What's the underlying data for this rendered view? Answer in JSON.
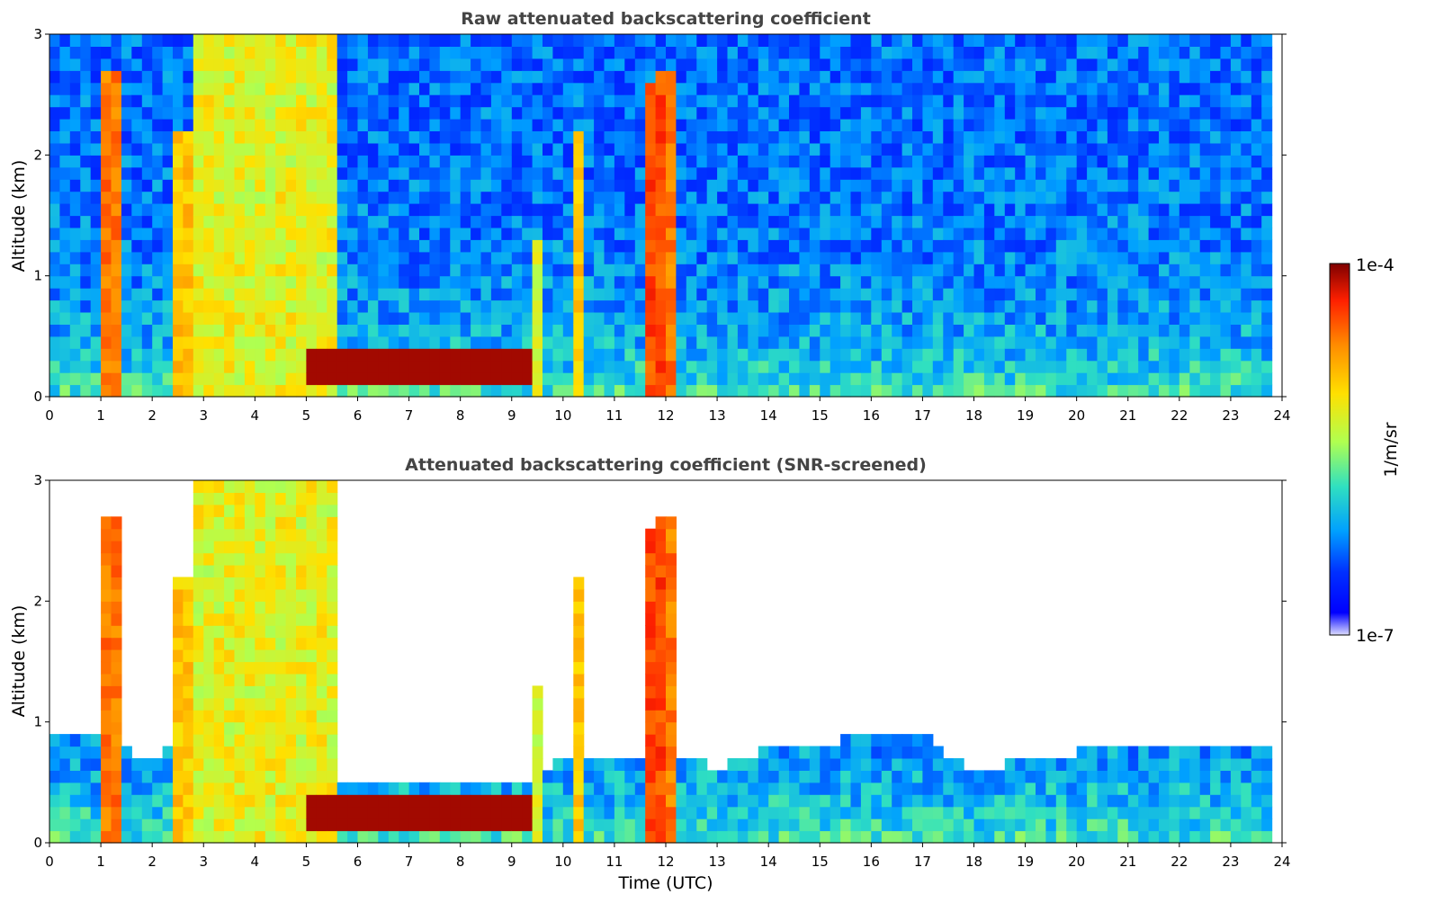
{
  "chart_data": [
    {
      "type": "heatmap",
      "title": "Raw attenuated backscattering coefficient",
      "xlabel": "",
      "ylabel": "Altitude (km)",
      "xlim": [
        0,
        24
      ],
      "ylim": [
        0,
        3
      ],
      "xticks": [
        "0",
        "1",
        "2",
        "3",
        "4",
        "5",
        "6",
        "7",
        "8",
        "9",
        "10",
        "11",
        "12",
        "13",
        "14",
        "15",
        "16",
        "17",
        "18",
        "19",
        "20",
        "21",
        "22",
        "23",
        "24"
      ],
      "yticks": [
        "0",
        "1",
        "2",
        "3"
      ],
      "data_end_hour": 23.8,
      "features": [
        {
          "kind": "aerosol_layer",
          "t0": 0,
          "t1": 23.8,
          "top_km": 0.45,
          "level": 0.22
        },
        {
          "kind": "noise_background",
          "t0": 0,
          "t1": 23.8,
          "level": 0.35
        },
        {
          "kind": "dense_plume",
          "t0": 2.8,
          "t1": 5.6,
          "top_km": 3.0,
          "level": 0.62
        },
        {
          "kind": "cloud_layer",
          "t0": 5.0,
          "t1": 9.3,
          "base_km": 0.12,
          "top_km": 0.35,
          "level": 0.97
        },
        {
          "kind": "column",
          "t": 1.2,
          "top_km": 2.7,
          "level": 0.8
        },
        {
          "kind": "column",
          "t": 2.6,
          "top_km": 2.2,
          "level": 0.7
        },
        {
          "kind": "column",
          "t": 9.5,
          "top_km": 1.3,
          "level": 0.6
        },
        {
          "kind": "column",
          "t": 10.3,
          "top_km": 2.2,
          "level": 0.7
        },
        {
          "kind": "column",
          "t": 11.8,
          "top_km": 2.6,
          "level": 0.85
        },
        {
          "kind": "column",
          "t": 12.0,
          "top_km": 2.7,
          "level": 0.8
        }
      ]
    },
    {
      "type": "heatmap",
      "title": "Attenuated backscattering coefficient (SNR-screened)",
      "xlabel": "Time (UTC)",
      "ylabel": "Altitude (km)",
      "xlim": [
        0,
        24
      ],
      "ylim": [
        0,
        3
      ],
      "xticks": [
        "0",
        "1",
        "2",
        "3",
        "4",
        "5",
        "6",
        "7",
        "8",
        "9",
        "10",
        "11",
        "12",
        "13",
        "14",
        "15",
        "16",
        "17",
        "18",
        "19",
        "20",
        "21",
        "22",
        "23",
        "24"
      ],
      "yticks": [
        "0",
        "1",
        "2",
        "3"
      ],
      "data_end_hour": 23.8,
      "screened_boundary_km": [
        [
          0,
          0.95
        ],
        [
          1,
          0.85
        ],
        [
          2,
          0.7
        ],
        [
          3,
          1.1
        ],
        [
          4,
          0.95
        ],
        [
          5,
          0.6
        ],
        [
          6,
          0.5
        ],
        [
          7,
          0.45
        ],
        [
          8,
          0.38
        ],
        [
          9,
          0.38
        ],
        [
          10,
          0.7
        ],
        [
          11,
          0.7
        ],
        [
          12,
          0.75
        ],
        [
          13,
          0.62
        ],
        [
          14,
          0.8
        ],
        [
          15,
          0.78
        ],
        [
          16,
          0.95
        ],
        [
          17,
          0.9
        ],
        [
          18,
          0.55
        ],
        [
          19,
          0.7
        ],
        [
          20,
          0.75
        ],
        [
          21,
          0.78
        ],
        [
          22,
          0.78
        ],
        [
          23,
          0.8
        ],
        [
          23.8,
          0.8
        ]
      ]
    }
  ],
  "colorbar": {
    "max_label": "1e-4",
    "min_label": "1e-7",
    "unit_label": "1/m/sr",
    "stops": [
      "#7f0000",
      "#ff2000",
      "#ff8c00",
      "#ffe000",
      "#b0ff50",
      "#30e0c0",
      "#00a0ff",
      "#0030ff",
      "#0000ff",
      "#dcdcff"
    ]
  }
}
